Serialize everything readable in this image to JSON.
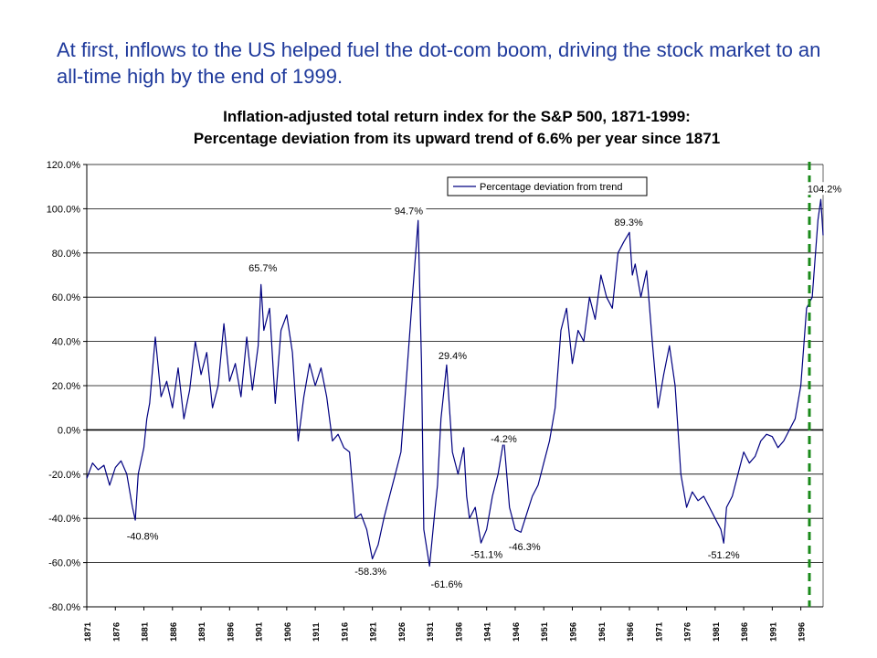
{
  "slide": {
    "headline": "At first, inflows to the US helped fuel the dot-com boom, driving the stock market to an all-time high by the end of 1999."
  },
  "colors": {
    "series": "#000080",
    "highlight_line": "#1a8a1a",
    "headline": "#1f3a9c"
  },
  "chart_data": {
    "type": "line",
    "title": "Inflation-adjusted total return index for the S&P 500, 1871-1999:",
    "subtitle": "Percentage deviation from its upward trend of 6.6% per year since 1871",
    "xlabel": "",
    "ylabel": "",
    "xlim": [
      1871,
      1999.9
    ],
    "ylim": [
      -80,
      120
    ],
    "y_ticks": [
      "120.0%",
      "100.0%",
      "80.0%",
      "60.0%",
      "40.0%",
      "20.0%",
      "0.0%",
      "-20.0%",
      "-40.0%",
      "-60.0%",
      "-80.0%"
    ],
    "x_ticks": [
      "1871",
      "1876",
      "1881",
      "1886",
      "1891",
      "1896",
      "1901",
      "1906",
      "1911",
      "1916",
      "1921",
      "1926",
      "1931",
      "1936",
      "1941",
      "1946",
      "1951",
      "1956",
      "1961",
      "1966",
      "1971",
      "1976",
      "1981",
      "1986",
      "1991",
      "1996"
    ],
    "grid": "horizontal",
    "legend": {
      "position": "top-right",
      "entries": [
        "Percentage deviation from trend"
      ]
    },
    "series": [
      {
        "name": "Percentage deviation from trend",
        "x": [
          1871,
          1872,
          1873,
          1874,
          1875,
          1876,
          1877,
          1878,
          1879,
          1879.5,
          1880,
          1881,
          1881.5,
          1882,
          1883,
          1884,
          1885,
          1886,
          1887,
          1888,
          1889,
          1890,
          1891,
          1892,
          1893,
          1894,
          1895,
          1896,
          1897,
          1898,
          1899,
          1900,
          1901,
          1901.5,
          1902,
          1903,
          1904,
          1905,
          1906,
          1907,
          1908,
          1909,
          1910,
          1911,
          1912,
          1913,
          1914,
          1915,
          1916,
          1917,
          1918,
          1919,
          1920,
          1921,
          1922,
          1923,
          1924,
          1925,
          1926,
          1927,
          1928,
          1929,
          1929.6,
          1930,
          1931,
          1932,
          1932.4,
          1933,
          1934,
          1935,
          1936,
          1937,
          1937.5,
          1938,
          1939,
          1940,
          1941,
          1942,
          1943,
          1944,
          1945,
          1946,
          1947,
          1948,
          1949,
          1950,
          1951,
          1952,
          1953,
          1954,
          1955,
          1956,
          1957,
          1958,
          1959,
          1960,
          1961,
          1962,
          1963,
          1964,
          1965,
          1966,
          1966.5,
          1967,
          1968,
          1969,
          1970,
          1971,
          1972,
          1973,
          1974,
          1975,
          1976,
          1977,
          1978,
          1979,
          1980,
          1981,
          1982,
          1982.5,
          1983,
          1984,
          1985,
          1986,
          1987,
          1988,
          1989,
          1990,
          1991,
          1992,
          1993,
          1994,
          1995,
          1996,
          1997,
          1998,
          1999,
          1999.5,
          1999.9
        ],
        "values": [
          -22,
          -15,
          -18,
          -16,
          -25,
          -17,
          -14,
          -20,
          -35,
          -40.8,
          -20,
          -8,
          5,
          12,
          42,
          15,
          22,
          10,
          28,
          5,
          18,
          40,
          25,
          35,
          10,
          20,
          48,
          22,
          30,
          15,
          42,
          18,
          38,
          65.7,
          45,
          55,
          12,
          45,
          52,
          35,
          -5,
          15,
          30,
          20,
          28,
          15,
          -5,
          -2,
          -8,
          -10,
          -40,
          -38,
          -45,
          -58.3,
          -52,
          -40,
          -30,
          -20,
          -10,
          25,
          60,
          94.7,
          30,
          -45,
          -61.6,
          -35,
          -25,
          5,
          29.4,
          -10,
          -20,
          -8,
          -30,
          -40,
          -35,
          -51.1,
          -45,
          -30,
          -20,
          -4.2,
          -35,
          -45,
          -46.3,
          -38,
          -30,
          -25,
          -15,
          -5,
          10,
          45,
          55,
          30,
          45,
          40,
          60,
          50,
          70,
          60,
          55,
          80,
          85,
          89.3,
          70,
          75,
          60,
          72,
          40,
          10,
          25,
          38,
          20,
          -20,
          -35,
          -28,
          -32,
          -30,
          -35,
          -40,
          -45,
          -51.2,
          -35,
          -30,
          -20,
          -10,
          -15,
          -12,
          -5,
          -2,
          -3,
          -8,
          -5,
          0,
          5,
          20,
          55,
          60,
          95,
          104.2,
          88
        ]
      }
    ],
    "annotations": [
      {
        "x": 1879.5,
        "y": -40.8,
        "label": "-40.8%"
      },
      {
        "x": 1901.5,
        "y": 65.7,
        "label": "65.7%"
      },
      {
        "x": 1921,
        "y": -58.3,
        "label": "-58.3%"
      },
      {
        "x": 1929.6,
        "y": 94.7,
        "label": "94.7%"
      },
      {
        "x": 1932.4,
        "y": -61.6,
        "label": "-61.6%"
      },
      {
        "x": 1936,
        "y": 29.4,
        "label": "29.4%"
      },
      {
        "x": 1941,
        "y": -51.1,
        "label": "-51.1%"
      },
      {
        "x": 1944,
        "y": -4.2,
        "label": "-4.2%"
      },
      {
        "x": 1947,
        "y": -46.3,
        "label": "-46.3%"
      },
      {
        "x": 1966.5,
        "y": 89.3,
        "label": "89.3%"
      },
      {
        "x": 1982.5,
        "y": -51.2,
        "label": "-51.2%"
      },
      {
        "x": 1999.5,
        "y": 104.2,
        "label": "104.2%"
      }
    ],
    "reference_line": {
      "x": 1997.5,
      "style": "dashed"
    }
  }
}
